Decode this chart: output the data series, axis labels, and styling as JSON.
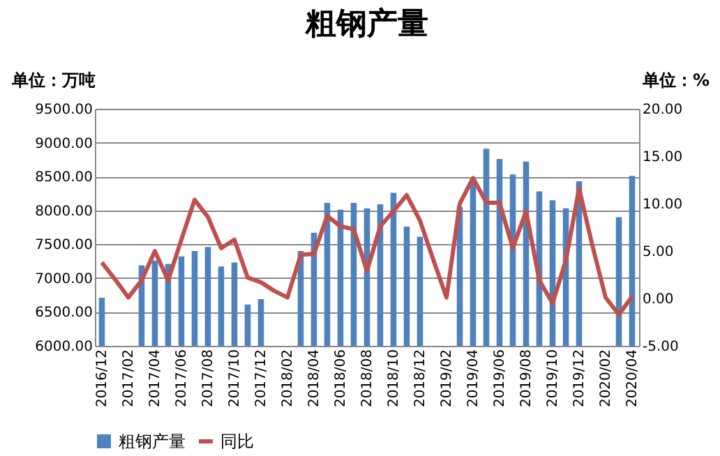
{
  "chart_data": {
    "type": "bar",
    "title": "粗钢产量",
    "ylabel": "单位：万吨",
    "y2label": "单位：%",
    "categories": [
      "2016/12",
      null,
      "2017/02",
      null,
      "2017/04",
      null,
      "2017/06",
      null,
      "2017/08",
      null,
      "2017/10",
      null,
      "2017/12",
      null,
      "2018/02",
      null,
      "2018/04",
      null,
      "2018/06",
      null,
      "2018/08",
      null,
      "2018/10",
      null,
      "2018/12",
      null,
      "2019/02",
      null,
      "2019/04",
      null,
      "2019/06",
      null,
      "2019/08",
      null,
      "2019/10",
      null,
      "2019/12",
      null,
      "2020/02",
      null,
      "2020/04"
    ],
    "series": [
      {
        "name": "粗钢产量",
        "color": "#4f81bd",
        "values": [
          6710,
          null,
          null,
          7190,
          7260,
          7210,
          7320,
          7400,
          7460,
          7170,
          7230,
          6610,
          6690,
          null,
          null,
          7400,
          7670,
          8110,
          8010,
          8110,
          8030,
          8090,
          8260,
          7760,
          7610,
          null,
          null,
          8050,
          8470,
          8910,
          8760,
          8530,
          8720,
          8280,
          8150,
          8030,
          8430,
          null,
          null,
          7900,
          8510
        ]
      },
      {
        "name": "同比",
        "type": "line",
        "axis": "y2",
        "color": "#c0504d",
        "values": [
          3.8,
          2.0,
          0.1,
          1.9,
          5.0,
          1.9,
          6.2,
          10.4,
          8.6,
          5.3,
          6.2,
          2.2,
          1.7,
          0.8,
          0.1,
          4.6,
          4.7,
          8.7,
          7.6,
          7.3,
          2.9,
          7.6,
          9.2,
          10.9,
          8.2,
          4.1,
          0.1,
          10.0,
          12.7,
          10.1,
          10.1,
          5.3,
          9.2,
          1.9,
          -0.5,
          4.0,
          11.6,
          5.6,
          0.1,
          -1.7,
          0.2
        ]
      }
    ],
    "ylim": [
      6000,
      9500
    ],
    "yticks": [
      {
        "value": 6000,
        "label": "6000.00"
      },
      {
        "value": 6500,
        "label": "6500.00"
      },
      {
        "value": 7000,
        "label": "7000.00"
      },
      {
        "value": 7500,
        "label": "7500.00"
      },
      {
        "value": 8000,
        "label": "8000.00"
      },
      {
        "value": 8500,
        "label": "8500.00"
      },
      {
        "value": 9000,
        "label": "9000.00"
      },
      {
        "value": 9500,
        "label": "9500.00"
      }
    ],
    "y2lim": [
      -5,
      20
    ],
    "y2ticks": [
      {
        "value": -5,
        "label": "-5.00"
      },
      {
        "value": 0,
        "label": "0.00"
      },
      {
        "value": 5,
        "label": "5.00"
      },
      {
        "value": 10,
        "label": "10.00"
      },
      {
        "value": 15,
        "label": "15.00"
      },
      {
        "value": 20,
        "label": "20.00"
      }
    ],
    "grid": "y",
    "legend": "bottom"
  }
}
